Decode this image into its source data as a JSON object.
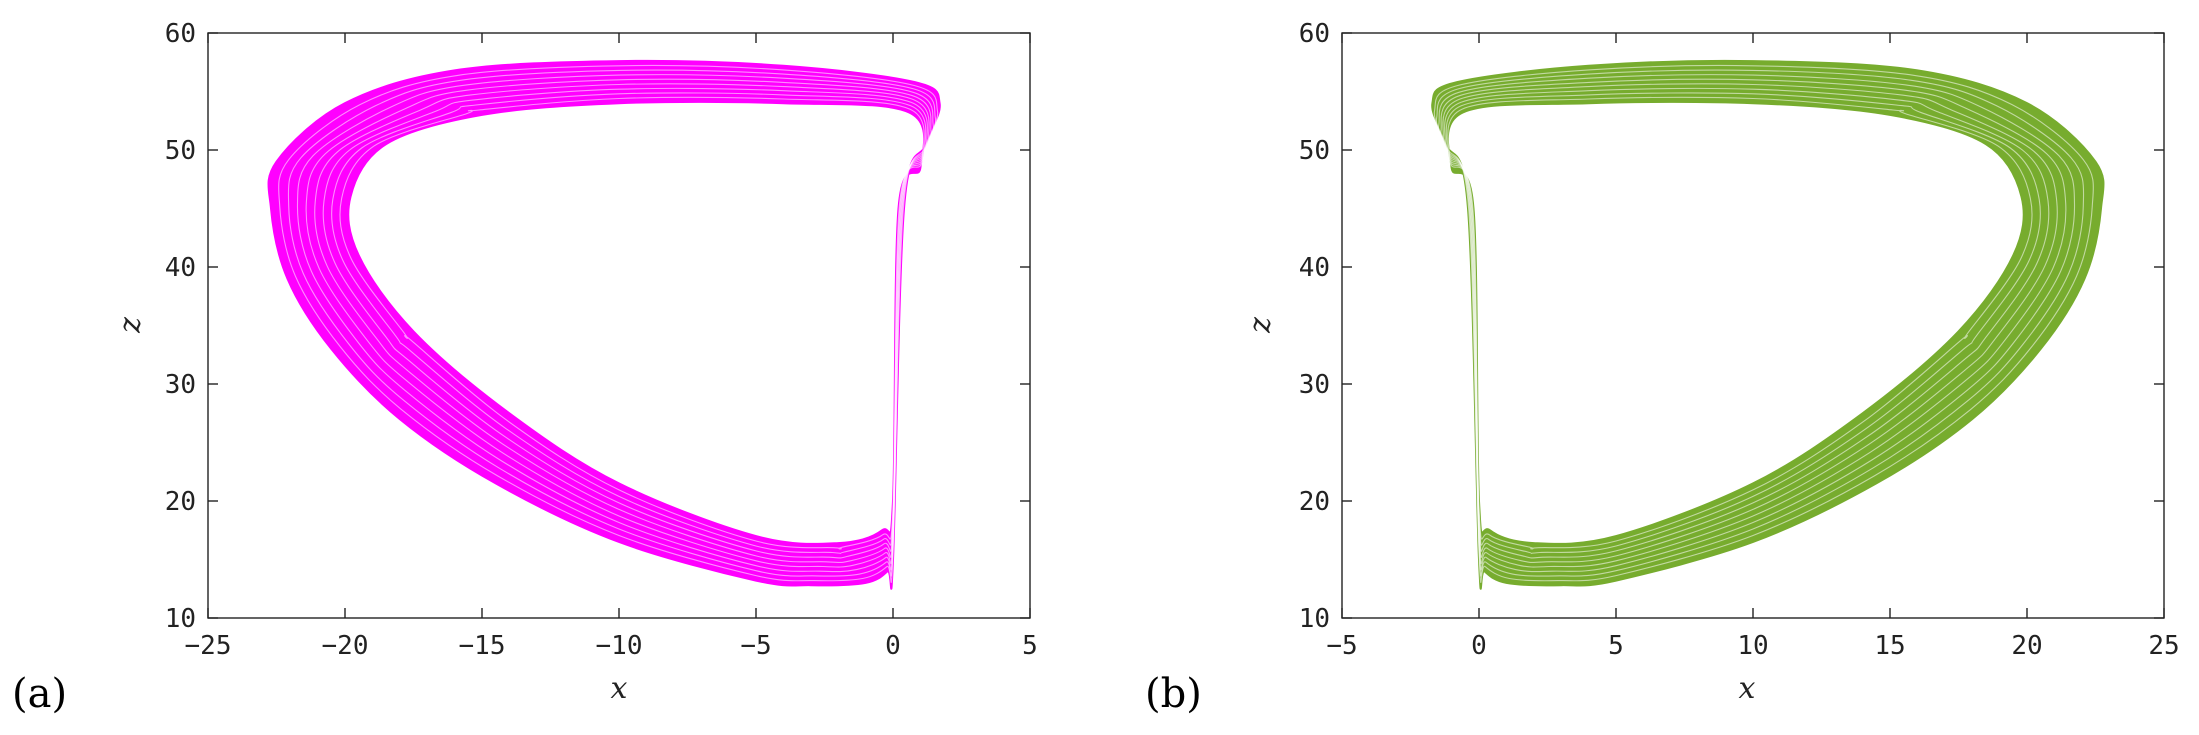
{
  "panels": [
    {
      "label": "(a)",
      "chart_data": {
        "type": "line",
        "xlabel": "x",
        "ylabel": "z",
        "xlim": [
          -25,
          5
        ],
        "ylim": [
          10,
          60
        ],
        "xticks": [
          -25,
          -20,
          -15,
          -10,
          -5,
          0,
          5
        ],
        "yticks": [
          10,
          20,
          30,
          40,
          50,
          60
        ],
        "xtick_labels": [
          "−25",
          "−20",
          "−15",
          "−10",
          "−5",
          "0",
          "5"
        ],
        "ytick_labels": [
          "10",
          "20",
          "30",
          "40",
          "50",
          "60"
        ],
        "grid": false,
        "color": "#ff00ff",
        "series": [
          {
            "description": "outer edge of attractor band",
            "x": [
              0.0,
              0.4,
              1.2,
              1.7,
              0.8,
              -4,
              -10,
              -16,
              -20,
              -22.5,
              -22.7,
              -22.1,
              -20.5,
              -18,
              -14.5,
              -10,
              -5,
              -3,
              -1,
              -0.2,
              0.0
            ],
            "y": [
              15.0,
              45.0,
              50.5,
              54.0,
              55.8,
              57.2,
              57.6,
              56.8,
              54.0,
              49.0,
              45.0,
              39.0,
              33.0,
              27.0,
              21.5,
              16.5,
              13.2,
              12.8,
              13.0,
              14.0,
              15.0
            ]
          },
          {
            "description": "inner edge of attractor band",
            "x": [
              0.0,
              0.2,
              1.0,
              0.6,
              -4,
              -10,
              -15,
              -18.5,
              -19.8,
              -19.5,
              -17.5,
              -14,
              -10,
              -5,
              -2,
              -0.4,
              0.0
            ],
            "y": [
              20.0,
              45.0,
              48.5,
              53.2,
              54.0,
              54.0,
              53.0,
              50.5,
              46.0,
              41.0,
              34.5,
              27.5,
              21.5,
              17.0,
              16.4,
              17.5,
              20.0
            ]
          }
        ]
      }
    },
    {
      "label": "(b)",
      "chart_data": {
        "type": "line",
        "xlabel": "x",
        "ylabel": "z",
        "xlim": [
          -5,
          25
        ],
        "ylim": [
          10,
          60
        ],
        "xticks": [
          -5,
          0,
          5,
          10,
          15,
          20,
          25
        ],
        "yticks": [
          10,
          20,
          30,
          40,
          50,
          60
        ],
        "xtick_labels": [
          "−5",
          "0",
          "5",
          "10",
          "15",
          "20",
          "25"
        ],
        "ytick_labels": [
          "10",
          "20",
          "30",
          "40",
          "50",
          "60"
        ],
        "grid": false,
        "color": "#77ac2e",
        "series": [
          {
            "description": "outer edge of attractor band",
            "x": [
              0.0,
              -0.4,
              -1.2,
              -1.7,
              -0.8,
              4,
              10,
              16,
              20,
              22.5,
              22.7,
              22.1,
              20.5,
              18,
              14.5,
              10,
              5,
              3,
              1,
              0.2,
              0.0
            ],
            "y": [
              15.0,
              45.0,
              50.5,
              54.0,
              55.8,
              57.2,
              57.6,
              56.8,
              54.0,
              49.0,
              45.0,
              39.0,
              33.0,
              27.0,
              21.5,
              16.5,
              13.2,
              12.8,
              13.0,
              14.0,
              15.0
            ]
          },
          {
            "description": "inner edge of attractor band",
            "x": [
              0.0,
              -0.2,
              -1.0,
              -0.6,
              4,
              10,
              15,
              18.5,
              19.8,
              19.5,
              17.5,
              14,
              10,
              5,
              2,
              0.4,
              0.0
            ],
            "y": [
              20.0,
              45.0,
              48.5,
              53.2,
              54.0,
              54.0,
              53.0,
              50.5,
              46.0,
              41.0,
              34.5,
              27.5,
              21.5,
              17.0,
              16.4,
              17.5,
              20.0
            ]
          }
        ]
      }
    }
  ]
}
